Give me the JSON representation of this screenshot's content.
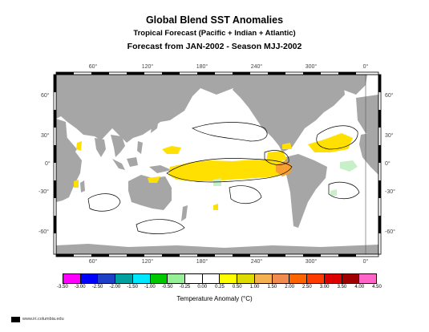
{
  "header": {
    "title": "Global Blend SST Anomalies",
    "subtitle": "Tropical Forecast (Pacific + Indian + Atlantic)",
    "forecast": "Forecast from JAN-2002 - Season MJJ-2002"
  },
  "map": {
    "lon_ticks_top": [
      "60°",
      "120°",
      "180°",
      "240°",
      "300°",
      "0°"
    ],
    "lon_ticks_bottom": [
      "60°",
      "120°",
      "180°",
      "240°",
      "300°",
      "0°"
    ],
    "lat_ticks_left": [
      "60°",
      "30°",
      "0°",
      "-30°",
      "-60°"
    ],
    "lat_ticks_right": [
      "60°",
      "30°",
      "0°",
      "-30°",
      "-60°"
    ],
    "colors": {
      "land": "#a6a6a6",
      "ocean": "#ffffff",
      "warm_anomaly": "#ffe000",
      "strong_warm_anomaly": "#f5a030",
      "cool_anomaly": "#c8f0c8",
      "contour": "#000000"
    }
  },
  "legend": {
    "colors": [
      "#ff00ff",
      "#0000ff",
      "#1e40c8",
      "#00a0a0",
      "#00e8ff",
      "#00c800",
      "#96f096",
      "#ffffff",
      "#ffffff",
      "#ffff00",
      "#dcdc00",
      "#f5b050",
      "#f08c50",
      "#ff6400",
      "#ff3c00",
      "#dc0000",
      "#a00000",
      "#ff64c8"
    ],
    "labels": [
      "-3.50",
      "-3.00",
      "-2.50",
      "-2.00",
      "-1.50",
      "-1.00",
      "-0.50",
      "-0.25",
      "0.00",
      "0.25",
      "0.50",
      "1.00",
      "1.50",
      "2.00",
      "2.50",
      "3.00",
      "3.50",
      "4.00",
      "4.50"
    ],
    "units": "Temperature Anomaly (°C)"
  },
  "footer": {
    "credit": "www.iri.columbia.edu"
  }
}
